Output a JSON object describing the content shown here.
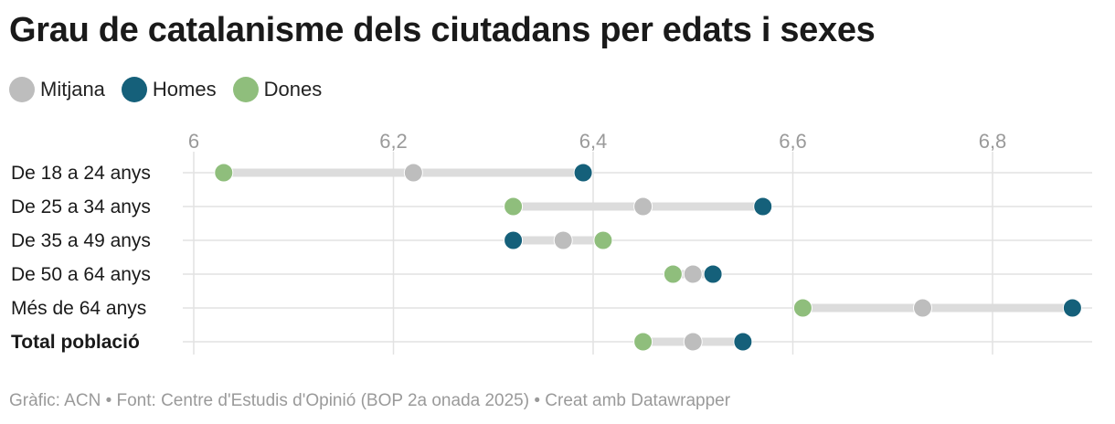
{
  "chart_data": {
    "type": "dot-range",
    "title": "Grau de catalanisme dels ciutadans per edats i sexes",
    "xlim": [
      6,
      6.9
    ],
    "ticks": [
      6,
      6.2,
      6.4,
      6.6,
      6.8
    ],
    "tick_labels": [
      "6",
      "6,2",
      "6,4",
      "6,6",
      "6,8"
    ],
    "legend": [
      {
        "name": "Mitjana",
        "color": "#bdbdbd"
      },
      {
        "name": "Homes",
        "color": "#15607a"
      },
      {
        "name": "Dones",
        "color": "#8fbe7c"
      }
    ],
    "rows": [
      {
        "label": "De 18 a 24 anys",
        "mitjana": 6.22,
        "homes": 6.39,
        "dones": 6.03,
        "bold": false
      },
      {
        "label": "De 25 a 34 anys",
        "mitjana": 6.45,
        "homes": 6.57,
        "dones": 6.32,
        "bold": false
      },
      {
        "label": "De 35 a 49 anys",
        "mitjana": 6.37,
        "homes": 6.32,
        "dones": 6.41,
        "bold": false
      },
      {
        "label": "De 50 a 64 anys",
        "mitjana": 6.5,
        "homes": 6.52,
        "dones": 6.48,
        "bold": false
      },
      {
        "label": "Més de 64 anys",
        "mitjana": 6.73,
        "homes": 6.88,
        "dones": 6.61,
        "bold": false
      },
      {
        "label": "Total població",
        "mitjana": 6.5,
        "homes": 6.55,
        "dones": 6.45,
        "bold": true
      }
    ]
  },
  "footer": "Gràfic: ACN • Font: Centre d'Estudis d'Opinió (BOP 2a onada 2025) • Creat amb Datawrapper"
}
